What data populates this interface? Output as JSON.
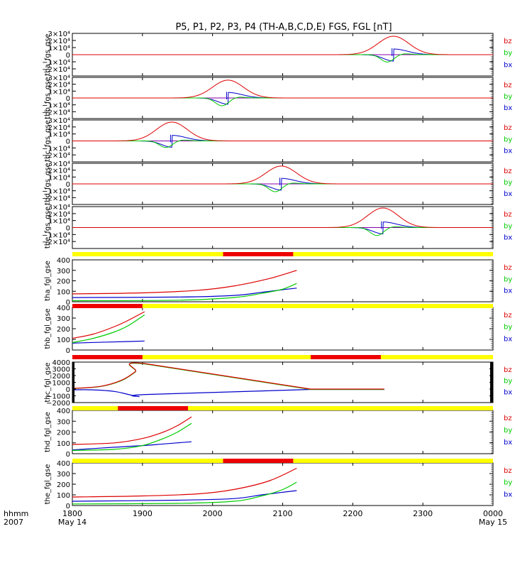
{
  "title": "P5, P1, P2, P3, P4 (TH-A,B,C,D,E) FGS, FGL [nT]",
  "time_axis": {
    "label_top": "hhmm",
    "label_bottom": "2007",
    "start_hour": 18,
    "end_hour": 24,
    "ticks": [
      {
        "hour": 18,
        "label": "1800",
        "sub": "May 14"
      },
      {
        "hour": 19,
        "label": "1900",
        "sub": ""
      },
      {
        "hour": 20,
        "label": "2000",
        "sub": ""
      },
      {
        "hour": 21,
        "label": "2100",
        "sub": ""
      },
      {
        "hour": 22,
        "label": "2200",
        "sub": ""
      },
      {
        "hour": 23,
        "label": "2300",
        "sub": ""
      },
      {
        "hour": 24,
        "label": "0000",
        "sub": "May 15"
      }
    ]
  },
  "colors": {
    "bz": "#dd0000",
    "by": "#00cc00",
    "bx": "#0000cc",
    "bar_yellow": "#ffff00",
    "bar_red": "#ee0000"
  },
  "legend": [
    "bz",
    "by",
    "bx"
  ],
  "chart_data": [
    {
      "type": "line",
      "ylabel": "tha_fgs_gse",
      "ylim": [
        -30000,
        30000
      ],
      "ytick_labels": [
        "3×10⁴",
        "2×10⁴",
        "1×10⁴",
        "0",
        "−1×10⁴",
        "−2×10⁴"
      ],
      "data_range": [
        21.55,
        23.95
      ],
      "peak_hour": 22.58,
      "series": [
        {
          "name": "bz",
          "peak": 26000
        },
        {
          "name": "by",
          "peak": -13000
        },
        {
          "name": "bx",
          "peak": 8000
        }
      ]
    },
    {
      "type": "line",
      "ylabel": "thb_fgs_gse",
      "ylim": [
        -30000,
        30000
      ],
      "ytick_labels": [
        "3×10⁴",
        "2×10⁴",
        "1×10⁴",
        "0",
        "−1×10⁴",
        "−2×10⁴"
      ],
      "data_range": [
        18.85,
        21.22
      ],
      "peak_hour": 20.22,
      "series": [
        {
          "name": "bz",
          "peak": 26000
        },
        {
          "name": "by",
          "peak": -14000
        },
        {
          "name": "bx",
          "peak": 8000
        }
      ]
    },
    {
      "type": "line",
      "ylabel": "thc_fgs_gse",
      "ylim": [
        -30000,
        30000
      ],
      "ytick_labels": [
        "3×10⁴",
        "2×10⁴",
        "1×10⁴",
        "0",
        "−1×10⁴",
        "−2×10⁴"
      ],
      "data_range": [
        18.55,
        21.25
      ],
      "peak_hour": 19.42,
      "series": [
        {
          "name": "bz",
          "peak": 27000
        },
        {
          "name": "by",
          "peak": -12000
        },
        {
          "name": "bx",
          "peak": 8000
        }
      ]
    },
    {
      "type": "line",
      "ylabel": "thd_fgs_gse",
      "ylim": [
        -30000,
        30000
      ],
      "ytick_labels": [
        "3×10⁴",
        "2×10⁴",
        "1×10⁴",
        "0",
        "−1×10⁴",
        "−2×10⁴"
      ],
      "data_range": [
        19.6,
        22.2
      ],
      "peak_hour": 20.98,
      "series": [
        {
          "name": "bz",
          "peak": 26000
        },
        {
          "name": "by",
          "peak": -14000
        },
        {
          "name": "bx",
          "peak": 8000
        }
      ]
    },
    {
      "type": "line",
      "ylabel": "the_fgs_gse",
      "ylim": [
        -30000,
        30000
      ],
      "ytick_labels": [
        "3×10⁴",
        "2×10⁴",
        "1×10⁴",
        "0",
        "−1×10⁴",
        "−2×10⁴"
      ],
      "data_range": [
        21.55,
        23.95
      ],
      "peak_hour": 22.43,
      "series": [
        {
          "name": "bz",
          "peak": 28000
        },
        {
          "name": "by",
          "peak": -14000
        },
        {
          "name": "bx",
          "peak": 8000
        }
      ]
    },
    {
      "type": "line",
      "ylabel": "tha_fgl_gse",
      "ylim": [
        0,
        400
      ],
      "ytick_labels": [
        "400",
        "300",
        "200",
        "100",
        "0"
      ],
      "bar": {
        "red": [
          [
            20.15,
            21.15
          ]
        ]
      },
      "data_range": [
        18.0,
        21.2
      ],
      "series": [
        {
          "name": "bz",
          "points": [
            [
              18.0,
              75
            ],
            [
              19.0,
              85
            ],
            [
              19.8,
              110
            ],
            [
              20.3,
              150
            ],
            [
              20.8,
              220
            ],
            [
              21.2,
              300
            ]
          ]
        },
        {
          "name": "by",
          "points": [
            [
              18.0,
              10
            ],
            [
              19.5,
              15
            ],
            [
              20.3,
              40
            ],
            [
              20.7,
              80
            ],
            [
              21.0,
              120
            ],
            [
              21.2,
              175
            ]
          ]
        },
        {
          "name": "bx",
          "points": [
            [
              18.0,
              40
            ],
            [
              19.5,
              45
            ],
            [
              20.3,
              60
            ],
            [
              20.7,
              90
            ],
            [
              21.0,
              115
            ],
            [
              21.2,
              130
            ]
          ]
        }
      ]
    },
    {
      "type": "line",
      "ylabel": "thb_fgl_gse",
      "ylim": [
        0,
        400
      ],
      "ytick_labels": [
        "400",
        "300",
        "200",
        "100",
        "0"
      ],
      "bar": {
        "red": [
          [
            18.0,
            19.0
          ]
        ]
      },
      "data_range": [
        18.0,
        19.03
      ],
      "series": [
        {
          "name": "bz",
          "points": [
            [
              18.0,
              110
            ],
            [
              18.3,
              150
            ],
            [
              18.6,
              220
            ],
            [
              18.8,
              280
            ],
            [
              19.03,
              360
            ]
          ]
        },
        {
          "name": "by",
          "points": [
            [
              18.0,
              70
            ],
            [
              18.3,
              110
            ],
            [
              18.6,
              170
            ],
            [
              18.8,
              230
            ],
            [
              19.03,
              330
            ]
          ]
        },
        {
          "name": "bx",
          "points": [
            [
              18.0,
              65
            ],
            [
              18.5,
              75
            ],
            [
              18.8,
              80
            ],
            [
              19.03,
              85
            ]
          ]
        }
      ]
    },
    {
      "type": "line",
      "ylabel": "thc_fgl_gse",
      "ylim": [
        -2000,
        4000
      ],
      "ytick_labels": [
        "4000",
        "3000",
        "2000",
        "1000",
        "0",
        "−1000",
        "−2000"
      ],
      "bar": {
        "red": [
          [
            18.0,
            19.0
          ],
          [
            21.4,
            22.4
          ]
        ]
      },
      "data_range": [
        18.0,
        22.45
      ],
      "series": [
        {
          "name": "bz",
          "points": [
            [
              18.0,
              100
            ],
            [
              18.4,
              400
            ],
            [
              18.7,
              1300
            ],
            [
              18.9,
              2600
            ],
            [
              19.02,
              3800
            ],
            [
              21.4,
              0
            ],
            [
              22.45,
              0
            ]
          ]
        },
        {
          "name": "by",
          "points": [
            [
              18.0,
              80
            ],
            [
              18.4,
              380
            ],
            [
              18.7,
              1250
            ],
            [
              18.9,
              2550
            ],
            [
              19.02,
              3750
            ],
            [
              21.4,
              -50
            ],
            [
              22.45,
              -50
            ]
          ]
        },
        {
          "name": "bx",
          "points": [
            [
              18.0,
              -100
            ],
            [
              18.3,
              -120
            ],
            [
              18.6,
              -350
            ],
            [
              18.8,
              -800
            ],
            [
              18.95,
              -1100
            ],
            [
              19.05,
              -800
            ],
            [
              21.4,
              -50
            ],
            [
              22.45,
              -50
            ]
          ]
        }
      ]
    },
    {
      "type": "line",
      "ylabel": "thd_fgl_gse",
      "ylim": [
        0,
        400
      ],
      "ytick_labels": [
        "400",
        "300",
        "200",
        "100",
        "0"
      ],
      "bar": {
        "red": [
          [
            18.65,
            19.65
          ]
        ]
      },
      "data_range": [
        18.0,
        19.7
      ],
      "series": [
        {
          "name": "bz",
          "points": [
            [
              18.0,
              85
            ],
            [
              18.6,
              100
            ],
            [
              19.0,
              140
            ],
            [
              19.3,
              200
            ],
            [
              19.5,
              260
            ],
            [
              19.7,
              340
            ]
          ]
        },
        {
          "name": "by",
          "points": [
            [
              18.0,
              30
            ],
            [
              18.6,
              40
            ],
            [
              19.0,
              75
            ],
            [
              19.3,
              140
            ],
            [
              19.5,
              200
            ],
            [
              19.7,
              280
            ]
          ]
        },
        {
          "name": "bx",
          "points": [
            [
              18.0,
              35
            ],
            [
              18.6,
              60
            ],
            [
              19.0,
              75
            ],
            [
              19.3,
              90
            ],
            [
              19.7,
              110
            ]
          ]
        }
      ]
    },
    {
      "type": "line",
      "ylabel": "the_fgl_gse",
      "ylim": [
        0,
        400
      ],
      "ytick_labels": [
        "400",
        "300",
        "200",
        "100",
        "0"
      ],
      "bar": {
        "red": [
          [
            20.15,
            21.15
          ]
        ]
      },
      "data_range": [
        18.0,
        21.2
      ],
      "series": [
        {
          "name": "bz",
          "points": [
            [
              18.0,
              80
            ],
            [
              19.0,
              90
            ],
            [
              19.8,
              110
            ],
            [
              20.3,
              150
            ],
            [
              20.8,
              230
            ],
            [
              21.2,
              350
            ]
          ]
        },
        {
          "name": "by",
          "points": [
            [
              18.0,
              15
            ],
            [
              19.5,
              20
            ],
            [
              20.3,
              40
            ],
            [
              20.7,
              90
            ],
            [
              21.0,
              150
            ],
            [
              21.2,
              220
            ]
          ]
        },
        {
          "name": "bx",
          "points": [
            [
              18.0,
              40
            ],
            [
              19.5,
              50
            ],
            [
              20.3,
              65
            ],
            [
              20.7,
              100
            ],
            [
              21.0,
              125
            ],
            [
              21.2,
              140
            ]
          ]
        }
      ]
    }
  ]
}
